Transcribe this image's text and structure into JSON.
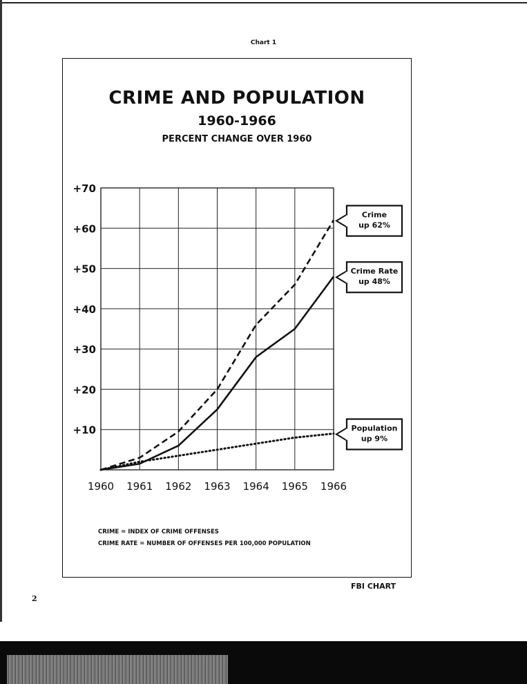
{
  "caption": "Chart 1",
  "chart_data": {
    "type": "line",
    "title": "CRIME AND POPULATION",
    "subtitle_years": "1960-1966",
    "subtitle": "PERCENT CHANGE OVER 1960",
    "categories": [
      "1960",
      "1961",
      "1962",
      "1963",
      "1964",
      "1965",
      "1966"
    ],
    "x": [
      1960,
      1961,
      1962,
      1963,
      1964,
      1965,
      1966
    ],
    "ylim": [
      0,
      70
    ],
    "yticks": [
      10,
      20,
      30,
      40,
      50,
      60,
      70
    ],
    "ytick_labels": [
      "+10",
      "+20",
      "+30",
      "+40",
      "+50",
      "+60",
      "+70"
    ],
    "grid": true,
    "series": [
      {
        "name": "Crime",
        "style": "dashed",
        "values": [
          0,
          3,
          9.5,
          20,
          36,
          46,
          62
        ],
        "annotation": [
          "Crime",
          "up 62%"
        ]
      },
      {
        "name": "Crime Rate",
        "style": "solid",
        "values": [
          0,
          1.5,
          6,
          15,
          28,
          35,
          48
        ],
        "annotation": [
          "Crime Rate",
          "up 48%"
        ]
      },
      {
        "name": "Population",
        "style": "dotted",
        "values": [
          0,
          2,
          3.5,
          5,
          6.5,
          8,
          9
        ],
        "annotation": [
          "Population",
          "up 9%"
        ]
      }
    ]
  },
  "notes": [
    "CRIME = INDEX OF CRIME OFFENSES",
    "CRIME RATE = NUMBER OF OFFENSES PER 100,000 POPULATION"
  ],
  "footer_label": "FBI CHART",
  "page_number": "2",
  "colors": {
    "ink": "#111111",
    "paper": "#ffffff"
  }
}
